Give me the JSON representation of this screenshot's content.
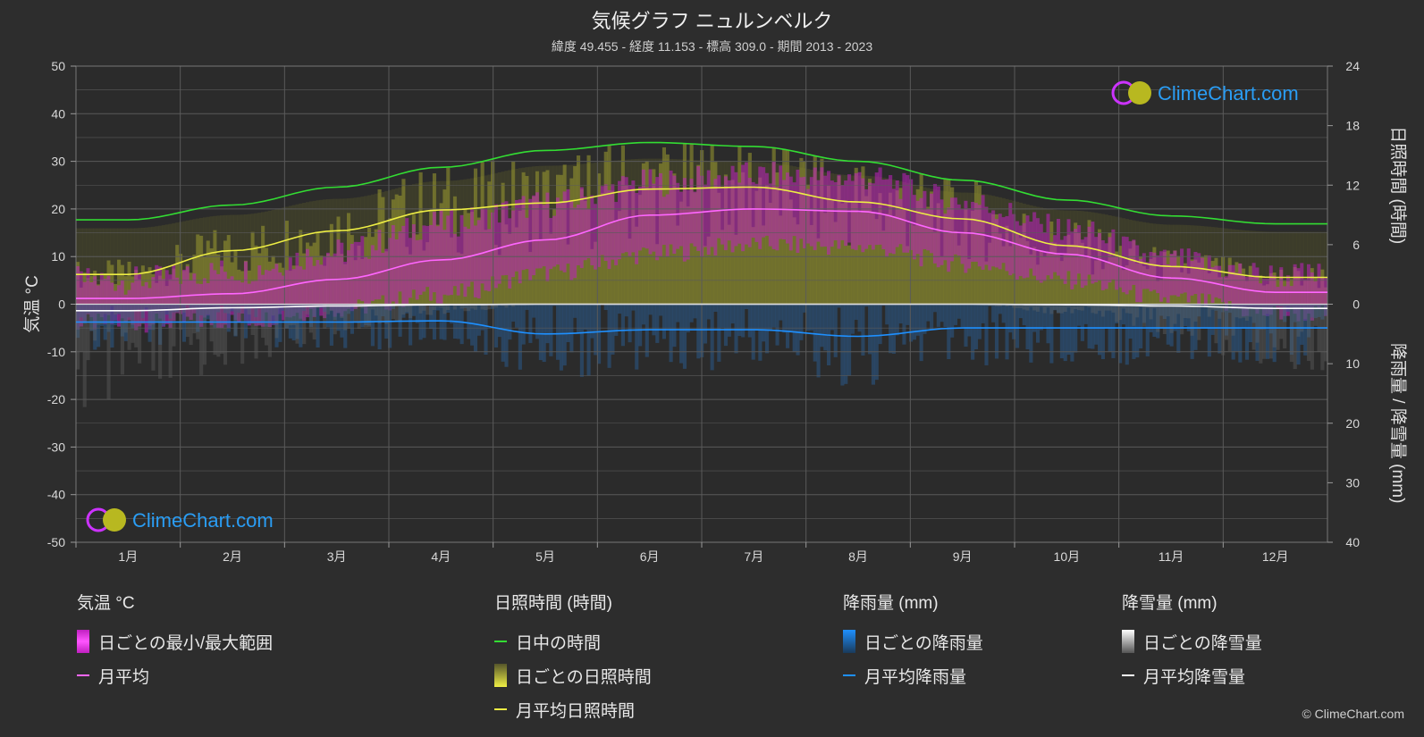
{
  "title": "気候グラフ ニュルンベルク",
  "subtitle": "緯度 49.455 - 経度 11.153 - 標高 309.0 - 期間 2013 - 2023",
  "copyright": "© ClimeChart.com",
  "watermark_text": "ClimeChart.com",
  "axes": {
    "left_label": "気温 °C",
    "right_top_label": "日照時間 (時間)",
    "right_bottom_label": "降雨量 / 降雪量 (mm)",
    "left_ticks": [
      "50",
      "40",
      "30",
      "20",
      "10",
      "0",
      "-10",
      "-20",
      "-30",
      "-40",
      "-50"
    ],
    "right_top_ticks": [
      "24",
      "18",
      "12",
      "6",
      "0"
    ],
    "right_bottom_ticks": [
      "10",
      "20",
      "30",
      "40"
    ]
  },
  "legend": {
    "temp": {
      "title": "気温 °C",
      "items": [
        "日ごとの最小/最大範囲",
        "月平均"
      ]
    },
    "sun": {
      "title": "日照時間 (時間)",
      "items": [
        "日中の時間",
        "日ごとの日照時間",
        "月平均日照時間"
      ]
    },
    "rain": {
      "title": "降雨量 (mm)",
      "items": [
        "日ごとの降雨量",
        "月平均降雨量"
      ]
    },
    "snow": {
      "title": "降雪量 (mm)",
      "items": [
        "日ごとの降雪量",
        "月平均降雪量"
      ]
    }
  },
  "colors": {
    "background": "#2d2d2d",
    "grid": "#5a5a5a",
    "daylight": "#33dd33",
    "sunshine_avg": "#eeee44",
    "sunshine_bar": "#9a9a30",
    "temp_range": "#c020c0",
    "temp_avg": "#ff66ff",
    "rain": "#1e90ff",
    "snow": "#ffffff"
  },
  "chart_data": {
    "type": "line",
    "categories": [
      "1月",
      "2月",
      "3月",
      "4月",
      "5月",
      "6月",
      "7月",
      "8月",
      "9月",
      "10月",
      "11月",
      "12月"
    ],
    "ylim_temp": [
      -50,
      50
    ],
    "ylim_sunshine_hours": [
      0,
      24
    ],
    "ylim_precip_mm": [
      0,
      40
    ],
    "series": [
      {
        "name": "日中の時間",
        "values": [
          8.5,
          10.0,
          11.8,
          13.8,
          15.5,
          16.3,
          15.9,
          14.4,
          12.5,
          10.5,
          8.9,
          8.1
        ]
      },
      {
        "name": "月平均日照時間",
        "values": [
          3.0,
          5.4,
          7.4,
          9.5,
          10.2,
          11.6,
          11.8,
          10.3,
          8.6,
          5.9,
          3.8,
          2.7
        ]
      },
      {
        "name": "月平均",
        "values": [
          1.2,
          2.2,
          5.2,
          9.3,
          13.5,
          18.7,
          20.0,
          19.5,
          15.0,
          10.5,
          5.5,
          2.5
        ]
      },
      {
        "name": "月平均降雨量",
        "values": [
          3.0,
          3.0,
          3.0,
          2.8,
          5.0,
          4.3,
          4.3,
          5.4,
          4.0,
          4.0,
          4.0,
          4.0
        ]
      },
      {
        "name": "月平均降雪量",
        "values": [
          1.1,
          0.6,
          0.3,
          0.1,
          0.0,
          0.0,
          0.0,
          0.0,
          0.0,
          0.1,
          0.3,
          0.7
        ]
      }
    ],
    "daily_temp_range_monthly": {
      "min": [
        -3.0,
        -2.5,
        0.0,
        3.0,
        7.5,
        11.5,
        13.5,
        13.0,
        9.5,
        6.0,
        2.0,
        -1.0
      ],
      "max": [
        4.0,
        6.0,
        10.0,
        16.0,
        20.0,
        24.5,
        26.0,
        25.5,
        20.5,
        14.5,
        8.0,
        5.0
      ]
    }
  }
}
